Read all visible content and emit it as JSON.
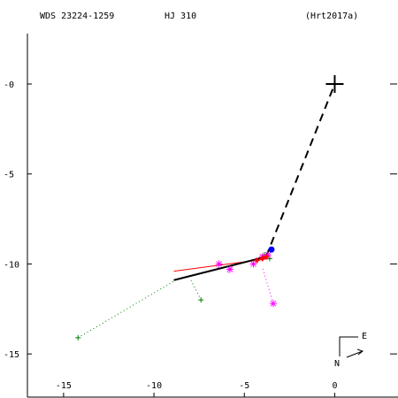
{
  "header": {
    "wds": "WDS 23224-1259",
    "name": "HJ  310",
    "ref": "(Hrt2017a)"
  },
  "compass": {
    "east": "E",
    "north": "N"
  },
  "chart_data": {
    "type": "scatter",
    "title": "",
    "xlabel": "",
    "ylabel": "",
    "xlim": [
      -17.0,
      3.5
    ],
    "ylim": [
      -17.4,
      2.8
    ],
    "x_ticks": [
      -15,
      -10,
      -5,
      0
    ],
    "x_tick_labels": [
      "-15",
      "-10",
      "-5",
      "0"
    ],
    "y_ticks": [
      0,
      -5,
      -10,
      -15
    ],
    "y_tick_labels": [
      "-0",
      "-5",
      "-10",
      "-15"
    ],
    "primary": {
      "x": 0,
      "y": 0
    },
    "orbit_line": [
      [
        -8.9,
        -10.9
      ],
      [
        -3.8,
        -9.6
      ]
    ],
    "dashed_line": [
      [
        -3.8,
        -9.6
      ],
      [
        0,
        0
      ]
    ],
    "red_line": [
      [
        -8.9,
        -10.4
      ],
      [
        -3.6,
        -9.7
      ]
    ],
    "colors": {
      "observations_plus": "#008000",
      "observations_star": "#ff00ff",
      "red": "#ff0000",
      "current": "#0000ff",
      "axes": "#000000"
    },
    "series": [
      {
        "marker": "plus",
        "color": "#008000",
        "points": [
          {
            "x": -14.2,
            "y": -14.1
          },
          {
            "x": -7.4,
            "y": -12.0
          },
          {
            "x": -3.6,
            "y": -9.7
          },
          {
            "x": -3.9,
            "y": -9.5
          }
        ]
      },
      {
        "marker": "star",
        "color": "#ff00ff",
        "points": [
          {
            "x": -6.4,
            "y": -10.0
          },
          {
            "x": -5.8,
            "y": -10.3
          },
          {
            "x": -4.5,
            "y": -10.0
          },
          {
            "x": -3.4,
            "y": -12.2
          },
          {
            "x": -4.0,
            "y": -9.6
          },
          {
            "x": -3.7,
            "y": -9.5
          }
        ]
      },
      {
        "marker": "red-plus",
        "color": "#ff0000",
        "points": [
          {
            "x": -4.3,
            "y": -9.8
          },
          {
            "x": -4.0,
            "y": -9.7
          },
          {
            "x": -3.8,
            "y": -9.6
          }
        ]
      },
      {
        "marker": "dot",
        "color": "#0000ff",
        "points": [
          {
            "x": -3.5,
            "y": -9.2
          }
        ]
      }
    ],
    "residual_lines": [
      {
        "from": [
          -14.2,
          -14.1
        ],
        "to": [
          -8.8,
          -10.9
        ],
        "color": "#008000"
      },
      {
        "from": [
          -7.4,
          -12.0
        ],
        "to": [
          -8.0,
          -10.8
        ],
        "color": "#008000"
      },
      {
        "from": [
          -3.4,
          -12.2
        ],
        "to": [
          -4.0,
          -10.2
        ],
        "color": "#ff00ff"
      },
      {
        "from": [
          -6.4,
          -10.0
        ],
        "to": [
          -6.5,
          -10.3
        ],
        "color": "#ff00ff"
      },
      {
        "from": [
          -5.8,
          -10.3
        ],
        "to": [
          -5.9,
          -10.5
        ],
        "color": "#ff00ff"
      },
      {
        "from": [
          -4.5,
          -10.0
        ],
        "to": [
          -4.6,
          -10.1
        ],
        "color": "#ff00ff"
      }
    ]
  }
}
